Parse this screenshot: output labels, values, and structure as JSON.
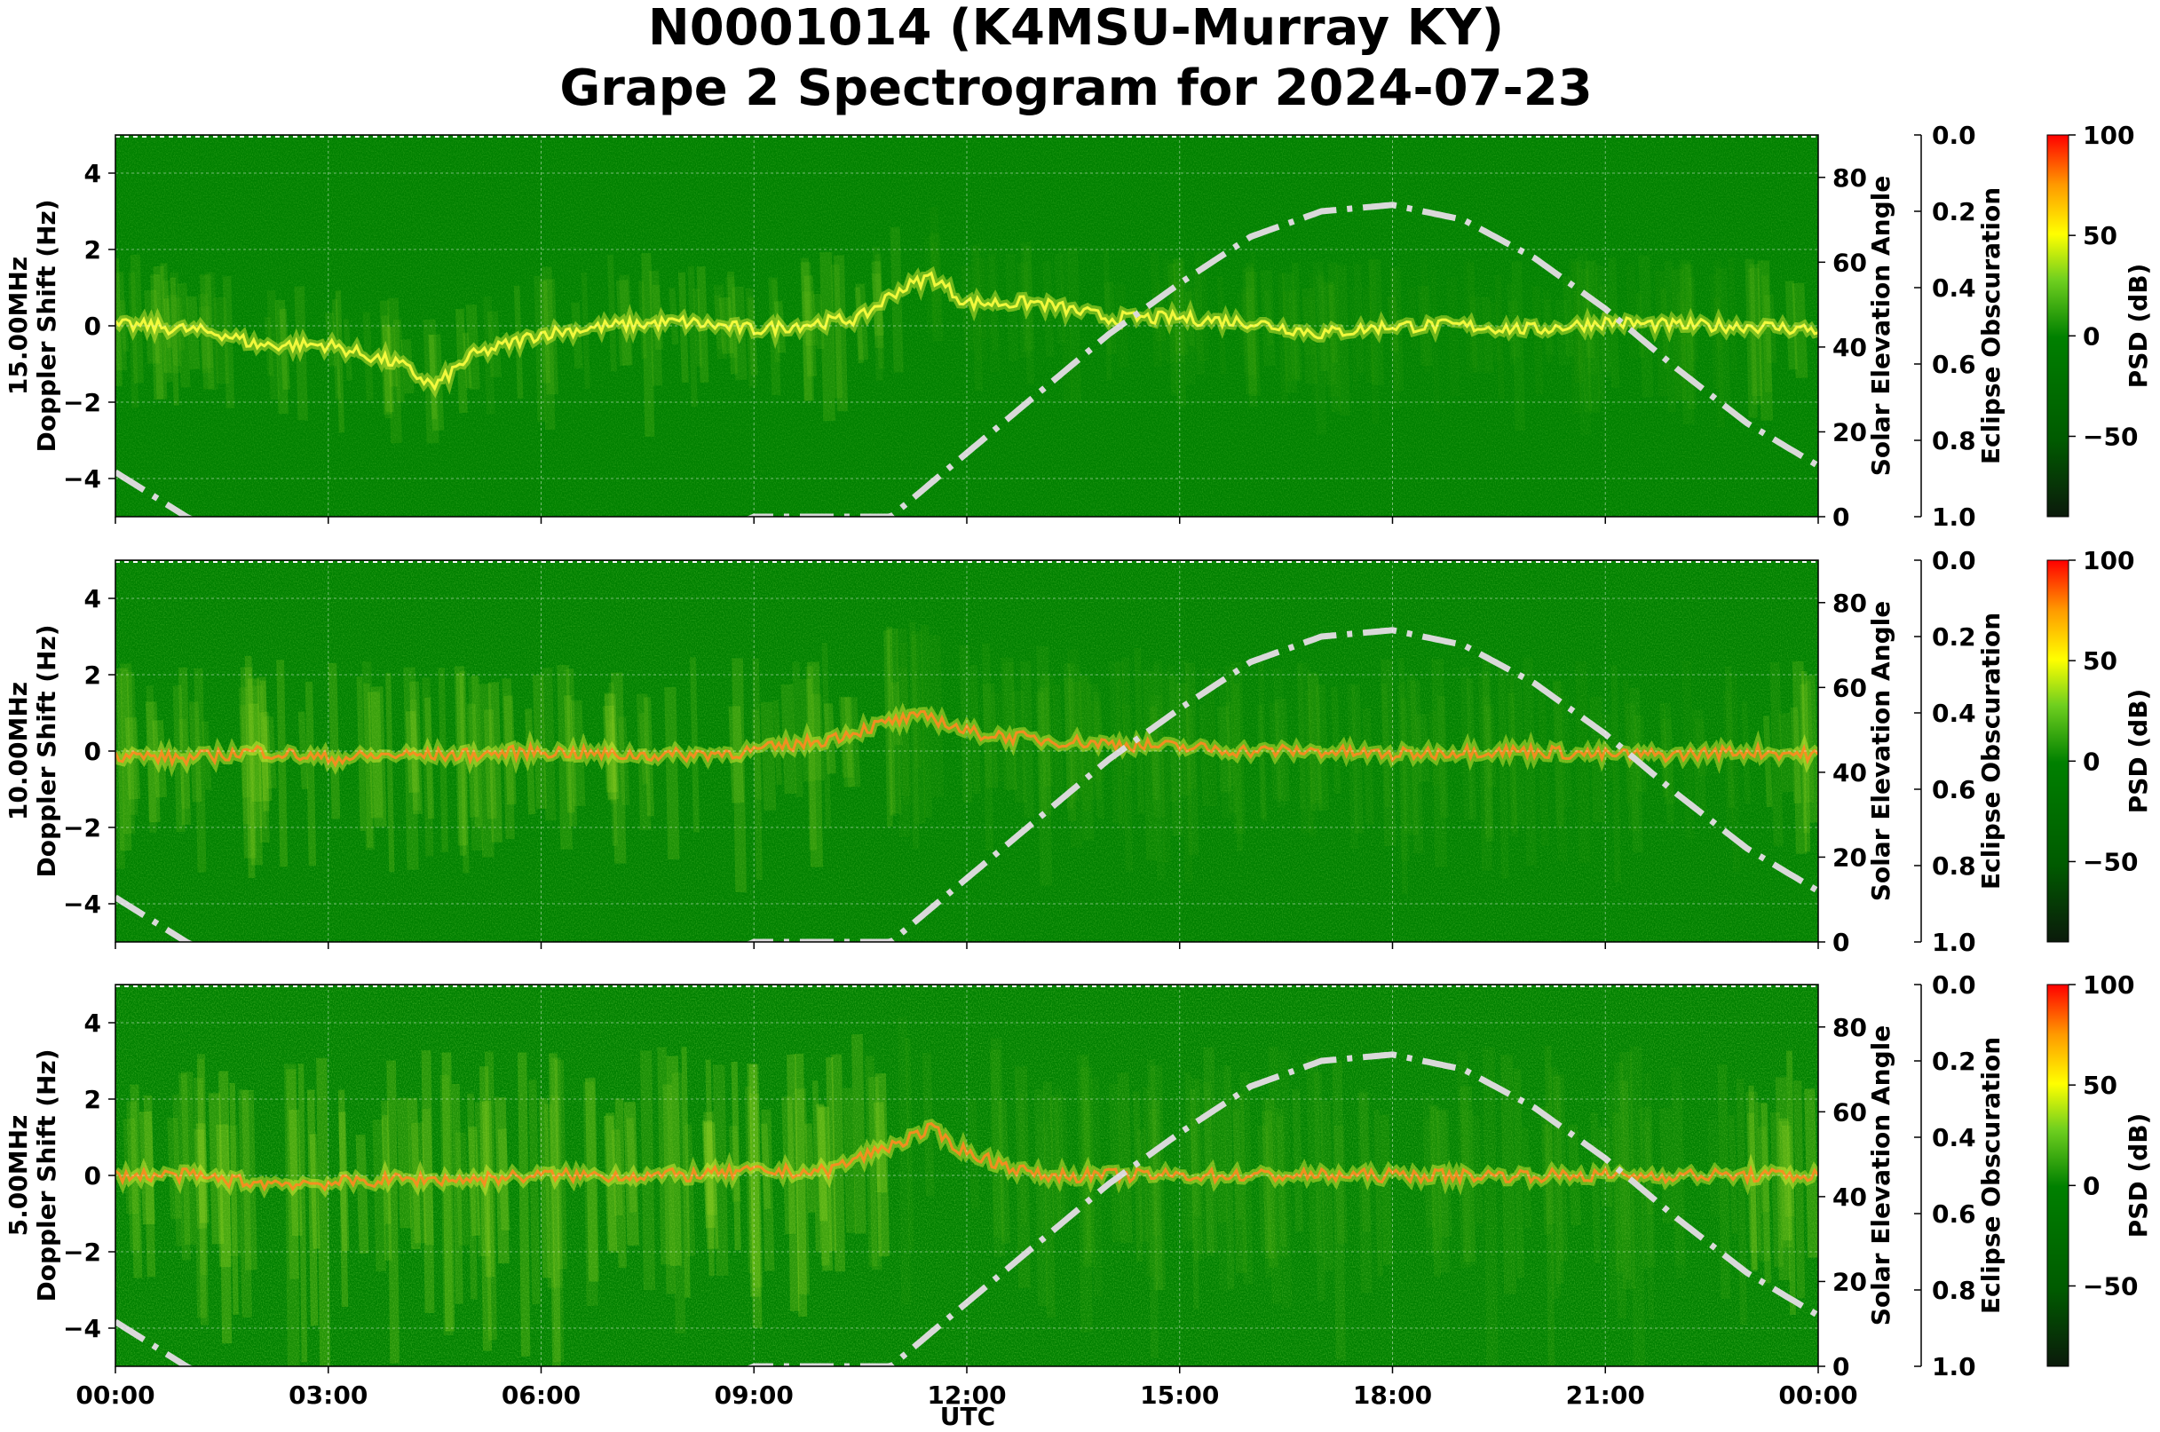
{
  "title_line1": "N0001014 (K4MSU-Murray KY)",
  "title_line2": "Grape 2 Spectrogram for 2024-07-23",
  "colors": {
    "background": "#008000",
    "psd_cmap": [
      "#0b1a0b",
      "#006400",
      "#008000",
      "#4caf1a",
      "#adff2f",
      "#ffff00",
      "#ff8c00",
      "#ff0000"
    ],
    "solar_curve": "#d9d9d9"
  },
  "chart_data": {
    "type": "heatmap",
    "xlabel": "UTC",
    "x_ticks": [
      "00:00",
      "03:00",
      "06:00",
      "09:00",
      "12:00",
      "15:00",
      "18:00",
      "21:00",
      "00:00"
    ],
    "xlim_hours": [
      0,
      24
    ],
    "y_ticks": [
      4,
      2,
      0,
      -2,
      -4
    ],
    "ylim": [
      -5,
      5
    ],
    "solar_ticks": [
      0,
      20,
      40,
      60,
      80
    ],
    "solar_label": "Solar Elevation Angle",
    "solar_ylim": [
      0,
      90
    ],
    "eclipse_ticks": [
      "0.0",
      "0.2",
      "0.4",
      "0.6",
      "0.8",
      "1.0"
    ],
    "eclipse_label": "Eclipse Obscuration",
    "psd_ticks": [
      100,
      50,
      0,
      -50
    ],
    "psd_label": "PSD (dB)",
    "psd_range": [
      -90,
      100
    ],
    "grid": true,
    "solar_elevation": {
      "hours": [
        0,
        1,
        2,
        3,
        4,
        5,
        6,
        7,
        8,
        9,
        10,
        10.93,
        12,
        13,
        14,
        15,
        16,
        17,
        18,
        19,
        20,
        21,
        22,
        23,
        24
      ],
      "degrees": [
        10.5,
        0,
        -8,
        -14,
        -18,
        -19,
        -17,
        -13,
        -7,
        0,
        0,
        0,
        15,
        29,
        43,
        55,
        66,
        72,
        73.5,
        70,
        61,
        49,
        35,
        22,
        12
      ]
    },
    "panels": [
      {
        "ylabel_line1": "15.00MHz",
        "ylabel_line2": "Doppler Shift (Hz)",
        "trace": {
          "hours": [
            0,
            0.5,
            1,
            1.5,
            2,
            3,
            4,
            4.5,
            5,
            6,
            7,
            8,
            9,
            10,
            10.5,
            11,
            11.5,
            12,
            13,
            14,
            15,
            16,
            17,
            18,
            19,
            20,
            21,
            22,
            23,
            24
          ],
          "doppler": [
            0,
            0,
            -0.1,
            -0.2,
            -0.5,
            -0.5,
            -1.0,
            -1.6,
            -0.8,
            -0.2,
            0,
            0.1,
            -0.1,
            0.1,
            0.2,
            0.9,
            1.3,
            0.6,
            0.6,
            0.2,
            0.2,
            0.1,
            -0.2,
            0,
            0,
            -0.1,
            0.1,
            0,
            0,
            -0.1
          ]
        },
        "noise_level": 0.15
      },
      {
        "ylabel_line1": "10.00MHz",
        "ylabel_line2": "Doppler Shift (Hz)",
        "trace": {
          "hours": [
            0,
            1,
            2,
            3,
            4,
            5,
            6,
            7,
            8,
            9,
            10,
            11,
            11.5,
            12,
            13,
            14,
            15,
            16,
            17,
            18,
            19,
            20,
            21,
            22,
            23,
            24
          ],
          "doppler": [
            -0.1,
            -0.2,
            0,
            -0.2,
            -0.1,
            -0.1,
            0,
            -0.1,
            -0.1,
            0,
            0.3,
            0.8,
            0.9,
            0.5,
            0.3,
            0.2,
            0.1,
            0,
            0,
            -0.1,
            0,
            0,
            -0.1,
            -0.1,
            0,
            -0.1
          ]
        },
        "noise_level": 0.35
      },
      {
        "ylabel_line1": "5.00MHz",
        "ylabel_line2": "Doppler Shift (Hz)",
        "trace": {
          "hours": [
            0,
            1,
            2,
            3,
            4,
            5,
            6,
            7,
            8,
            9,
            10,
            10.8,
            11.5,
            12,
            13,
            14,
            15,
            16,
            17,
            18,
            19,
            20,
            21,
            22,
            23,
            24
          ],
          "doppler": [
            0,
            0,
            -0.2,
            -0.2,
            -0.1,
            -0.1,
            0,
            0,
            0,
            0.1,
            0.1,
            0.7,
            1.2,
            0.6,
            0,
            0,
            0,
            0,
            0,
            0,
            0,
            0,
            0,
            0,
            0,
            0
          ]
        },
        "noise_level": 0.6
      }
    ]
  }
}
